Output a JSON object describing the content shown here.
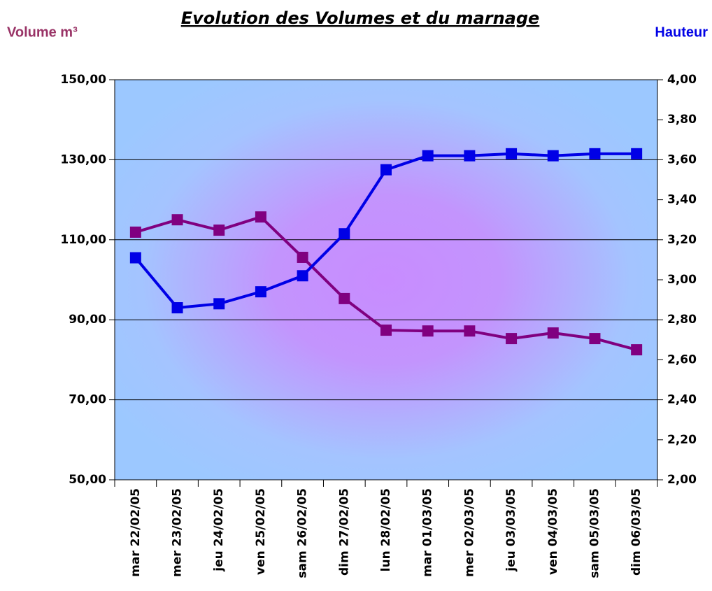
{
  "chart_data": {
    "type": "line",
    "title": "Evolution des Volumes et du marnage",
    "y_label": "Volume m³",
    "y2_label": "Hauteur",
    "categories": [
      "mar 22/02/05",
      "mer 23/02/05",
      "jeu 24/02/05",
      "ven 25/02/05",
      "sam 26/02/05",
      "dim 27/02/05",
      "lun 28/02/05",
      "mar 01/03/05",
      "mer 02/03/05",
      "jeu 03/03/05",
      "ven 04/03/05",
      "sam 05/03/05",
      "dim 06/03/05"
    ],
    "series": [
      {
        "name": "Volume m³",
        "color": "#800080",
        "values": [
          111.9,
          115.0,
          112.4,
          115.7,
          105.6,
          95.3,
          87.4,
          87.2,
          87.2,
          85.3,
          86.7,
          85.3,
          82.5
        ]
      },
      {
        "name": "Hauteur",
        "color": "#0000e6",
        "axis": "y2",
        "values": [
          3.11,
          2.86,
          2.88,
          2.94,
          3.02,
          3.23,
          3.55,
          3.62,
          3.62,
          3.63,
          3.62,
          3.63,
          3.63
        ]
      }
    ],
    "ylim": [
      50,
      150
    ],
    "yticks": [
      {
        "value": 50,
        "label": "50,00"
      },
      {
        "value": 70,
        "label": "70,00"
      },
      {
        "value": 90,
        "label": "90,00"
      },
      {
        "value": 110,
        "label": "110,00"
      },
      {
        "value": 130,
        "label": "130,00"
      },
      {
        "value": 150,
        "label": "150,00"
      }
    ],
    "y2lim": [
      2,
      4
    ],
    "y2ticks": [
      {
        "value": 2,
        "label": "2,00"
      },
      {
        "value": 2.2,
        "label": "2,20"
      },
      {
        "value": 2.4,
        "label": "2,40"
      },
      {
        "value": 2.6,
        "label": "2,60"
      },
      {
        "value": 2.8,
        "label": "2,80"
      },
      {
        "value": 3,
        "label": "3,00"
      },
      {
        "value": 3.2,
        "label": "3,20"
      },
      {
        "value": 3.4,
        "label": "3,40"
      },
      {
        "value": 3.6,
        "label": "3,60"
      },
      {
        "value": 3.8,
        "label": "3,80"
      },
      {
        "value": 4,
        "label": "4,00"
      }
    ],
    "grid": true
  }
}
